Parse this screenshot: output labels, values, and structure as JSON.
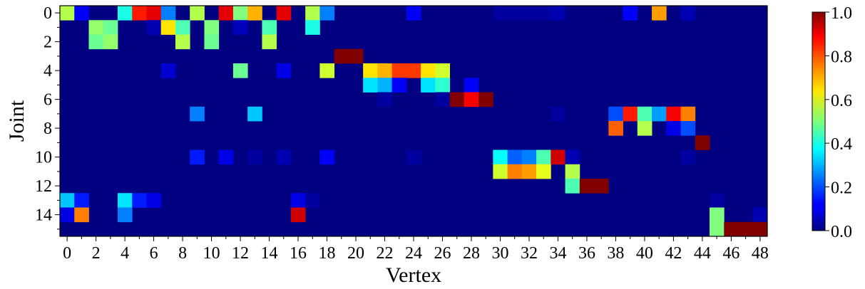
{
  "chart_data": {
    "type": "heatmap",
    "title": "",
    "xlabel": "Vertex",
    "ylabel": "Joint",
    "n_rows": 16,
    "n_cols": 49,
    "x_tick_labels": [
      "0",
      "2",
      "4",
      "6",
      "8",
      "10",
      "12",
      "14",
      "16",
      "18",
      "20",
      "22",
      "24",
      "26",
      "28",
      "30",
      "32",
      "34",
      "36",
      "38",
      "40",
      "42",
      "44",
      "46",
      "48"
    ],
    "y_tick_labels": [
      "0",
      "2",
      "4",
      "6",
      "8",
      "10",
      "12",
      "14"
    ],
    "colorbar": {
      "colormap": "jet",
      "range": [
        0.0,
        1.0
      ],
      "tick_labels": [
        "0.0",
        "0.2",
        "0.4",
        "0.6",
        "0.8",
        "1.0"
      ]
    },
    "default_value": 0.0,
    "cells": [
      [
        0,
        0,
        0.55
      ],
      [
        0,
        1,
        0.12
      ],
      [
        0,
        4,
        0.4
      ],
      [
        0,
        5,
        0.85
      ],
      [
        0,
        6,
        0.9
      ],
      [
        0,
        7,
        0.25
      ],
      [
        0,
        9,
        0.55
      ],
      [
        0,
        11,
        0.9
      ],
      [
        0,
        12,
        0.5
      ],
      [
        0,
        13,
        0.7
      ],
      [
        0,
        15,
        0.9
      ],
      [
        0,
        17,
        0.55
      ],
      [
        0,
        18,
        0.25
      ],
      [
        0,
        24,
        0.12
      ],
      [
        0,
        30,
        0.03
      ],
      [
        0,
        31,
        0.03
      ],
      [
        0,
        32,
        0.03
      ],
      [
        0,
        33,
        0.03
      ],
      [
        0,
        34,
        0.05
      ],
      [
        0,
        39,
        0.12
      ],
      [
        0,
        41,
        0.72
      ],
      [
        0,
        43,
        0.05
      ],
      [
        1,
        2,
        0.52
      ],
      [
        1,
        3,
        0.48
      ],
      [
        1,
        6,
        0.05
      ],
      [
        1,
        7,
        0.65
      ],
      [
        1,
        8,
        0.45
      ],
      [
        1,
        10,
        0.5
      ],
      [
        1,
        12,
        0.06
      ],
      [
        1,
        14,
        0.45
      ],
      [
        1,
        17,
        0.4
      ],
      [
        2,
        2,
        0.48
      ],
      [
        2,
        3,
        0.52
      ],
      [
        2,
        8,
        0.55
      ],
      [
        2,
        10,
        0.48
      ],
      [
        2,
        14,
        0.55
      ],
      [
        3,
        19,
        1.0
      ],
      [
        3,
        20,
        1.0
      ],
      [
        4,
        7,
        0.08
      ],
      [
        4,
        12,
        0.48
      ],
      [
        4,
        15,
        0.1
      ],
      [
        4,
        18,
        0.58
      ],
      [
        4,
        21,
        0.65
      ],
      [
        4,
        22,
        0.7
      ],
      [
        4,
        23,
        0.82
      ],
      [
        4,
        24,
        0.82
      ],
      [
        4,
        25,
        0.65
      ],
      [
        4,
        26,
        0.58
      ],
      [
        5,
        21,
        0.35
      ],
      [
        5,
        22,
        0.3
      ],
      [
        5,
        23,
        0.12
      ],
      [
        5,
        25,
        0.35
      ],
      [
        5,
        26,
        0.42
      ],
      [
        5,
        28,
        0.12
      ],
      [
        6,
        22,
        0.03
      ],
      [
        6,
        26,
        0.03
      ],
      [
        6,
        27,
        1.0
      ],
      [
        6,
        28,
        0.88
      ],
      [
        6,
        29,
        1.0
      ],
      [
        7,
        9,
        0.25
      ],
      [
        7,
        13,
        0.32
      ],
      [
        7,
        34,
        0.03
      ],
      [
        7,
        38,
        0.2
      ],
      [
        7,
        39,
        0.85
      ],
      [
        7,
        40,
        0.45
      ],
      [
        7,
        41,
        0.28
      ],
      [
        7,
        42,
        0.88
      ],
      [
        7,
        43,
        0.75
      ],
      [
        8,
        38,
        0.78
      ],
      [
        8,
        40,
        0.55
      ],
      [
        8,
        42,
        0.1
      ],
      [
        8,
        43,
        0.2
      ],
      [
        9,
        44,
        1.0
      ],
      [
        10,
        9,
        0.15
      ],
      [
        10,
        11,
        0.1
      ],
      [
        10,
        13,
        0.03
      ],
      [
        10,
        15,
        0.05
      ],
      [
        10,
        18,
        0.12
      ],
      [
        10,
        24,
        0.03
      ],
      [
        10,
        30,
        0.38
      ],
      [
        10,
        31,
        0.22
      ],
      [
        10,
        32,
        0.25
      ],
      [
        10,
        33,
        0.45
      ],
      [
        10,
        34,
        0.92
      ],
      [
        10,
        35,
        0.05
      ],
      [
        10,
        43,
        0.03
      ],
      [
        11,
        30,
        0.58
      ],
      [
        11,
        31,
        0.75
      ],
      [
        11,
        32,
        0.72
      ],
      [
        11,
        33,
        0.6
      ],
      [
        11,
        35,
        0.55
      ],
      [
        12,
        35,
        0.45
      ],
      [
        12,
        36,
        1.0
      ],
      [
        12,
        37,
        1.0
      ],
      [
        13,
        0,
        0.32
      ],
      [
        13,
        1,
        0.15
      ],
      [
        13,
        4,
        0.35
      ],
      [
        13,
        5,
        0.15
      ],
      [
        13,
        6,
        0.1
      ],
      [
        13,
        16,
        0.1
      ],
      [
        13,
        17,
        0.03
      ],
      [
        13,
        45,
        0.03
      ],
      [
        14,
        0,
        0.1
      ],
      [
        14,
        1,
        0.75
      ],
      [
        14,
        4,
        0.25
      ],
      [
        14,
        16,
        0.92
      ],
      [
        14,
        45,
        0.5
      ],
      [
        14,
        48,
        0.05
      ],
      [
        15,
        45,
        0.5
      ],
      [
        15,
        46,
        1.0
      ],
      [
        15,
        47,
        1.0
      ],
      [
        15,
        48,
        1.0
      ]
    ]
  }
}
